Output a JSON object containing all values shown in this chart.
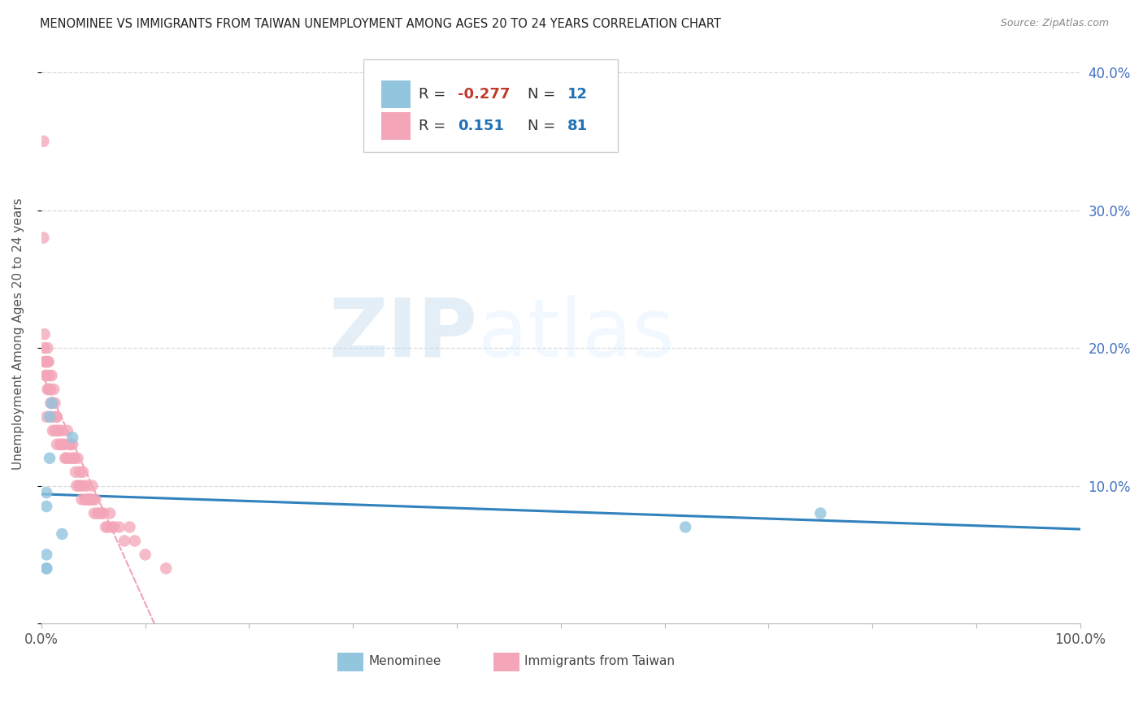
{
  "title": "MENOMINEE VS IMMIGRANTS FROM TAIWAN UNEMPLOYMENT AMONG AGES 20 TO 24 YEARS CORRELATION CHART",
  "source": "Source: ZipAtlas.com",
  "ylabel": "Unemployment Among Ages 20 to 24 years",
  "xlim": [
    0.0,
    1.0
  ],
  "ylim": [
    0.0,
    0.42
  ],
  "y_ticks": [
    0.0,
    0.1,
    0.2,
    0.3,
    0.4
  ],
  "y_tick_labels_right": [
    "",
    "10.0%",
    "20.0%",
    "30.0%",
    "40.0%"
  ],
  "watermark_zip": "ZIP",
  "watermark_atlas": "atlas",
  "blue_color": "#92c5de",
  "pink_color": "#f4a5b8",
  "blue_line_color": "#3182bd",
  "pink_line_color": "#e8668a",
  "menominee_x": [
    0.005,
    0.005,
    0.005,
    0.005,
    0.008,
    0.008,
    0.01,
    0.02,
    0.03,
    0.62,
    0.75,
    0.005
  ],
  "menominee_y": [
    0.095,
    0.085,
    0.05,
    0.04,
    0.15,
    0.12,
    0.16,
    0.065,
    0.135,
    0.07,
    0.08,
    0.04
  ],
  "taiwan_x": [
    0.002,
    0.002,
    0.003,
    0.003,
    0.003,
    0.004,
    0.004,
    0.005,
    0.005,
    0.005,
    0.006,
    0.006,
    0.006,
    0.007,
    0.007,
    0.008,
    0.008,
    0.009,
    0.009,
    0.01,
    0.01,
    0.011,
    0.011,
    0.012,
    0.013,
    0.013,
    0.014,
    0.015,
    0.015,
    0.016,
    0.017,
    0.018,
    0.019,
    0.02,
    0.021,
    0.022,
    0.023,
    0.024,
    0.025,
    0.026,
    0.027,
    0.028,
    0.029,
    0.03,
    0.031,
    0.032,
    0.033,
    0.034,
    0.035,
    0.036,
    0.037,
    0.038,
    0.039,
    0.04,
    0.041,
    0.042,
    0.043,
    0.044,
    0.045,
    0.046,
    0.047,
    0.048,
    0.049,
    0.05,
    0.051,
    0.052,
    0.054,
    0.056,
    0.058,
    0.06,
    0.062,
    0.064,
    0.066,
    0.068,
    0.07,
    0.075,
    0.08,
    0.085,
    0.09,
    0.1,
    0.12
  ],
  "taiwan_y": [
    0.35,
    0.28,
    0.21,
    0.2,
    0.19,
    0.19,
    0.18,
    0.19,
    0.18,
    0.15,
    0.2,
    0.19,
    0.17,
    0.19,
    0.17,
    0.18,
    0.17,
    0.17,
    0.16,
    0.18,
    0.15,
    0.16,
    0.14,
    0.17,
    0.16,
    0.14,
    0.15,
    0.15,
    0.13,
    0.14,
    0.14,
    0.13,
    0.13,
    0.14,
    0.13,
    0.13,
    0.12,
    0.12,
    0.14,
    0.12,
    0.13,
    0.13,
    0.12,
    0.13,
    0.12,
    0.12,
    0.11,
    0.1,
    0.12,
    0.1,
    0.11,
    0.1,
    0.09,
    0.11,
    0.1,
    0.09,
    0.09,
    0.1,
    0.09,
    0.09,
    0.09,
    0.09,
    0.1,
    0.09,
    0.08,
    0.09,
    0.08,
    0.08,
    0.08,
    0.08,
    0.07,
    0.07,
    0.08,
    0.07,
    0.07,
    0.07,
    0.06,
    0.07,
    0.06,
    0.05,
    0.04
  ],
  "background_color": "#ffffff",
  "grid_color": "#d0d0d0"
}
